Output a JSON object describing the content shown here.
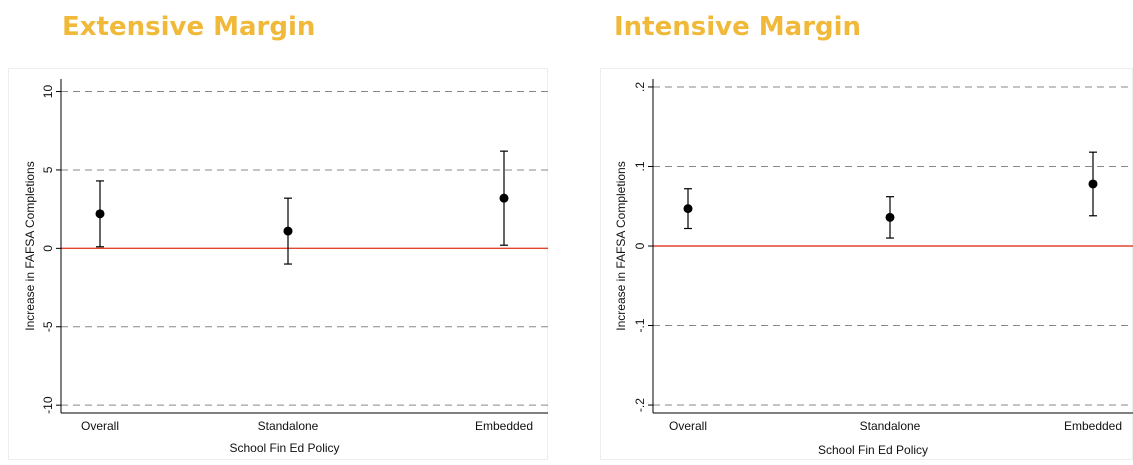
{
  "panels": {
    "left_title": "Extensive Margin",
    "right_title": "Intensive Margin"
  },
  "chart_data": [
    {
      "type": "scatter",
      "subtype": "coefficient-plot-with-confidence-intervals",
      "title": "Extensive Margin",
      "xlabel": "School Fin Ed Policy",
      "ylabel": "Increase in FAFSA Completions",
      "categories": [
        "Overall",
        "Standalone",
        "Embedded"
      ],
      "estimates": [
        2.2,
        1.1,
        3.2
      ],
      "ci_lower": [
        0.1,
        -1.0,
        0.2
      ],
      "ci_upper": [
        4.3,
        3.2,
        6.2
      ],
      "ylim": [
        -10.5,
        10.8
      ],
      "yticks": [
        10,
        5,
        0,
        -5,
        -10
      ],
      "ytick_labels": [
        "10",
        "5",
        "0",
        "-5",
        "-10"
      ],
      "reference_line": 0,
      "reference_line_color": "#e2452b",
      "grid": "dashed horizontal at ticks",
      "marker_color": "#000000",
      "legend": "none"
    },
    {
      "type": "scatter",
      "subtype": "coefficient-plot-with-confidence-intervals",
      "title": "Intensive Margin",
      "xlabel": "School Fin Ed Policy",
      "ylabel": "Increase in FAFSA Completions",
      "categories": [
        "Overall",
        "Standalone",
        "Embedded"
      ],
      "estimates": [
        0.047,
        0.036,
        0.078
      ],
      "ci_lower": [
        0.022,
        0.01,
        0.038
      ],
      "ci_upper": [
        0.072,
        0.062,
        0.118
      ],
      "ylim": [
        -0.21,
        0.21
      ],
      "yticks": [
        0.2,
        0.1,
        0,
        -0.1,
        -0.2
      ],
      "ytick_labels": [
        ".2",
        ".1",
        "0",
        "-.1",
        "-.2"
      ],
      "reference_line": 0,
      "reference_line_color": "#e2452b",
      "grid": "dashed horizontal at ticks",
      "marker_color": "#000000",
      "legend": "none"
    }
  ]
}
